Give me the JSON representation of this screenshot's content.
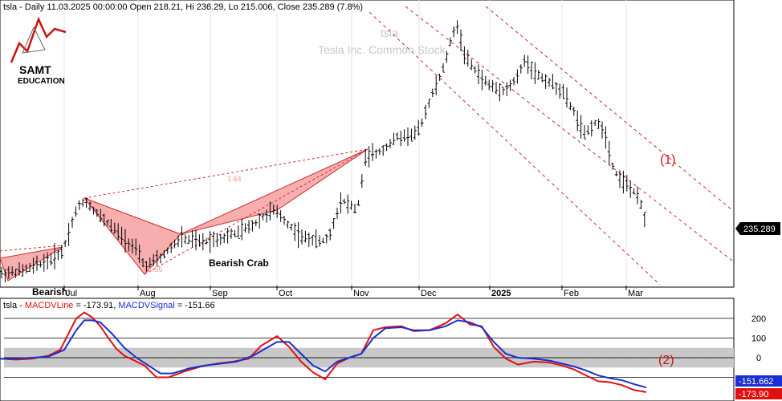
{
  "header": {
    "price_title": "tsla - Daily 11.03.2025 00:00:00 Open 218.21, Hi 236.29, Lo 215.006, Close 235.289 (7.8%)",
    "watermark_symbol": "tsla",
    "watermark_name": "Tesla Inc. Common Stock"
  },
  "logo": {
    "line1": "SAMT",
    "line2": "EDUCATION"
  },
  "colors": {
    "up_down_bars": "#000000",
    "pattern_fill": "#f4a0a0",
    "pattern_line": "#d42a2a",
    "macd_line": "#e01010",
    "signal_line": "#1a2fd0",
    "zero_band": "#c8c8c8",
    "label_red": "#cc1111"
  },
  "chart_data": [
    {
      "type": "ohlc",
      "title": "tsla - Daily",
      "x_ticks": [
        "Jul",
        "Aug",
        "Sep",
        "Oct",
        "Nov",
        "Dec",
        "2025",
        "Feb",
        "Mar"
      ],
      "last_price_label": "235.289",
      "annotations": {
        "pattern_left_label": "Bearish",
        "pattern_label": "Bearish Crab",
        "ratio_upper": "1.64",
        "ratio_lower": "0.55",
        "channel_label": "(1)"
      },
      "close_path": [
        [
          0,
          342
        ],
        [
          30,
          337
        ],
        [
          60,
          325
        ],
        [
          78,
          313
        ],
        [
          95,
          262
        ],
        [
          105,
          250
        ],
        [
          125,
          270
        ],
        [
          150,
          292
        ],
        [
          170,
          312
        ],
        [
          180,
          332
        ],
        [
          200,
          322
        ],
        [
          225,
          297
        ],
        [
          250,
          302
        ],
        [
          280,
          296
        ],
        [
          310,
          284
        ],
        [
          340,
          262
        ],
        [
          350,
          270
        ],
        [
          375,
          296
        ],
        [
          400,
          301
        ],
        [
          410,
          296
        ],
        [
          425,
          248
        ],
        [
          445,
          262
        ],
        [
          455,
          198
        ],
        [
          475,
          188
        ],
        [
          495,
          171
        ],
        [
          520,
          166
        ],
        [
          535,
          126
        ],
        [
          552,
          86
        ],
        [
          568,
          28
        ],
        [
          580,
          72
        ],
        [
          600,
          98
        ],
        [
          612,
          108
        ],
        [
          630,
          113
        ],
        [
          645,
          96
        ],
        [
          655,
          73
        ],
        [
          665,
          90
        ],
        [
          685,
          103
        ],
        [
          700,
          113
        ],
        [
          715,
          140
        ],
        [
          728,
          168
        ],
        [
          740,
          153
        ],
        [
          752,
          160
        ],
        [
          765,
          213
        ],
        [
          778,
          228
        ],
        [
          790,
          240
        ],
        [
          800,
          258
        ],
        [
          805,
          285
        ]
      ],
      "pattern_triangles": [
        [
          [
            0,
            322
          ],
          [
            78,
            308
          ],
          [
            10,
            350
          ]
        ],
        [
          [
            105,
            247
          ],
          [
            225,
            292
          ],
          [
            180,
            342
          ]
        ],
        [
          [
            225,
            292
          ],
          [
            458,
            186
          ],
          [
            345,
            262
          ]
        ]
      ],
      "channel_lines": [
        [
          [
            505,
            8
          ],
          [
            912,
            325
          ]
        ],
        [
          [
            460,
            15
          ],
          [
            822,
            355
          ]
        ],
        [
          [
            605,
            8
          ],
          [
            912,
            262
          ]
        ]
      ],
      "pattern_dashes": [
        [
          [
            0,
            313
          ],
          [
            78,
            306
          ]
        ],
        [
          [
            105,
            247
          ],
          [
            458,
            186
          ]
        ],
        [
          [
            180,
            342
          ],
          [
            458,
            186
          ]
        ],
        [
          [
            105,
            247
          ],
          [
            225,
            292
          ]
        ]
      ]
    },
    {
      "type": "line",
      "title": "tsla - MACDVLine = -173.91, MACDVSignal = -151.66",
      "series": [
        {
          "name": "MACDVLine",
          "value_label": "-173.91",
          "points": [
            [
              0,
              -5
            ],
            [
              20,
              -10
            ],
            [
              40,
              -5
            ],
            [
              60,
              10
            ],
            [
              75,
              40
            ],
            [
              85,
              120
            ],
            [
              95,
              200
            ],
            [
              105,
              230
            ],
            [
              115,
              205
            ],
            [
              125,
              160
            ],
            [
              135,
              100
            ],
            [
              145,
              45
            ],
            [
              155,
              10
            ],
            [
              165,
              -10
            ],
            [
              180,
              -40
            ],
            [
              195,
              -100
            ],
            [
              210,
              -100
            ],
            [
              230,
              -70
            ],
            [
              250,
              -45
            ],
            [
              270,
              -30
            ],
            [
              290,
              -20
            ],
            [
              310,
              -5
            ],
            [
              325,
              60
            ],
            [
              345,
              110
            ],
            [
              360,
              55
            ],
            [
              375,
              -20
            ],
            [
              390,
              -75
            ],
            [
              405,
              -110
            ],
            [
              420,
              -30
            ],
            [
              435,
              0
            ],
            [
              450,
              20
            ],
            [
              465,
              140
            ],
            [
              480,
              155
            ],
            [
              500,
              160
            ],
            [
              515,
              135
            ],
            [
              535,
              140
            ],
            [
              555,
              175
            ],
            [
              570,
              220
            ],
            [
              585,
              170
            ],
            [
              600,
              160
            ],
            [
              615,
              55
            ],
            [
              630,
              -5
            ],
            [
              645,
              -35
            ],
            [
              665,
              -20
            ],
            [
              685,
              -25
            ],
            [
              700,
              -40
            ],
            [
              715,
              -60
            ],
            [
              730,
              -90
            ],
            [
              745,
              -120
            ],
            [
              760,
              -125
            ],
            [
              775,
              -140
            ],
            [
              790,
              -165
            ],
            [
              805,
              -175
            ]
          ]
        },
        {
          "name": "MACDVSignal",
          "value_label": "-151.66",
          "points": [
            [
              0,
              -5
            ],
            [
              20,
              -5
            ],
            [
              40,
              0
            ],
            [
              60,
              5
            ],
            [
              80,
              40
            ],
            [
              95,
              140
            ],
            [
              105,
              190
            ],
            [
              115,
              190
            ],
            [
              125,
              180
            ],
            [
              140,
              120
            ],
            [
              155,
              50
            ],
            [
              170,
              0
            ],
            [
              185,
              -40
            ],
            [
              200,
              -80
            ],
            [
              215,
              -80
            ],
            [
              235,
              -55
            ],
            [
              255,
              -40
            ],
            [
              275,
              -30
            ],
            [
              295,
              -20
            ],
            [
              315,
              10
            ],
            [
              330,
              45
            ],
            [
              345,
              80
            ],
            [
              360,
              80
            ],
            [
              375,
              20
            ],
            [
              390,
              -40
            ],
            [
              405,
              -70
            ],
            [
              420,
              -20
            ],
            [
              435,
              0
            ],
            [
              450,
              20
            ],
            [
              465,
              100
            ],
            [
              480,
              150
            ],
            [
              500,
              155
            ],
            [
              515,
              140
            ],
            [
              535,
              140
            ],
            [
              555,
              160
            ],
            [
              570,
              190
            ],
            [
              585,
              180
            ],
            [
              600,
              155
            ],
            [
              615,
              80
            ],
            [
              630,
              20
            ],
            [
              645,
              0
            ],
            [
              665,
              -5
            ],
            [
              685,
              -15
            ],
            [
              700,
              -30
            ],
            [
              715,
              -45
            ],
            [
              730,
              -65
            ],
            [
              745,
              -90
            ],
            [
              760,
              -105
            ],
            [
              775,
              -115
            ],
            [
              790,
              -135
            ],
            [
              805,
              -152
            ]
          ]
        }
      ],
      "y_ticks": [
        "200",
        "100",
        "0"
      ],
      "last_labels": [
        "-151.662",
        "-173.90"
      ],
      "channel_label": "(2)"
    }
  ]
}
